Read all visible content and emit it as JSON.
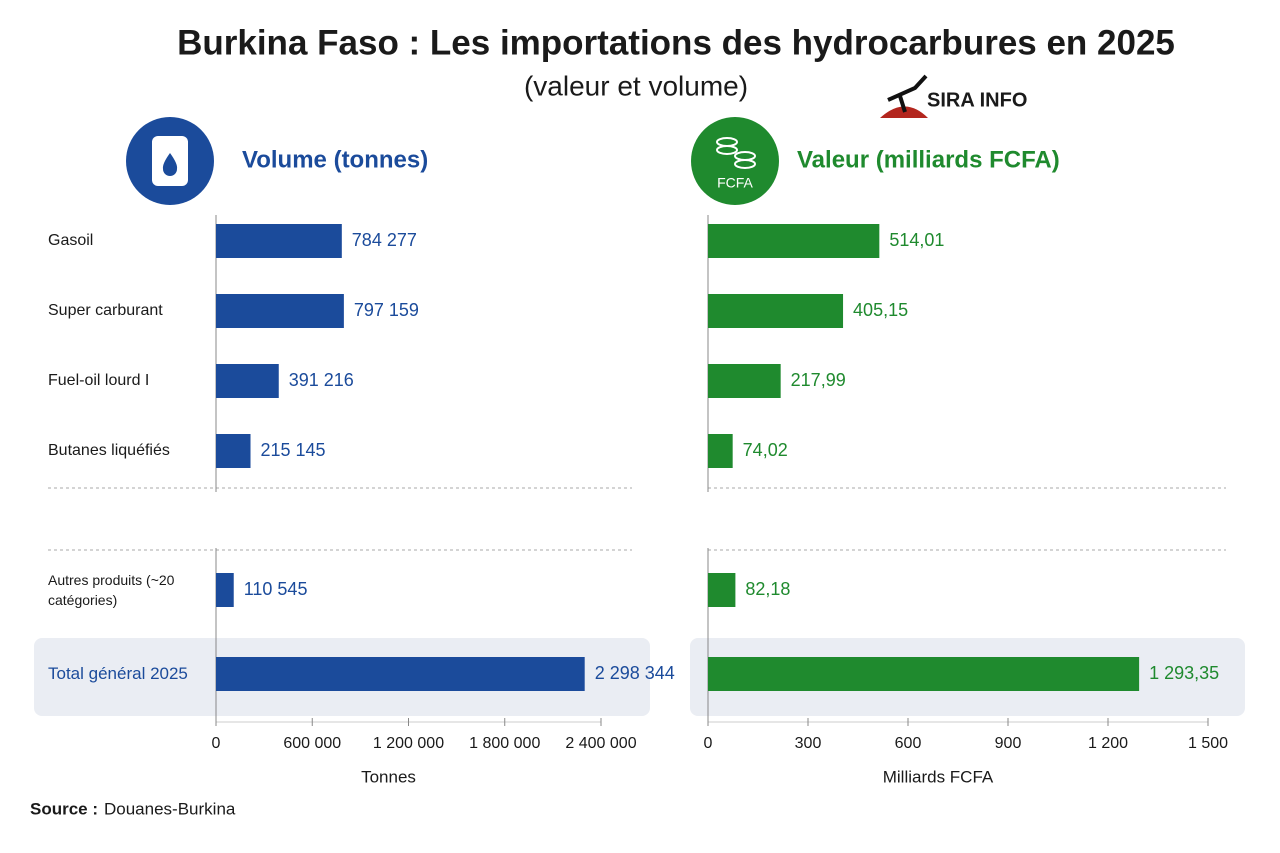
{
  "title": "Burkina Faso : Les importations des hydrocarbures en 2025",
  "subtitle": "(valeur et volume)",
  "logo": "SIRA INFO",
  "source": {
    "label": "Source :",
    "text": "Douanes-Burkina"
  },
  "chart_data": [
    {
      "type": "bar",
      "orientation": "horizontal",
      "header": "Volume (tonnes)",
      "categories": [
        "Gasoil",
        "Super carburant",
        "Fuel-oil lourd I",
        "Butanes liquéfiés",
        "Autres produits (~20 catégories)",
        "Total général 2025"
      ],
      "values": [
        784277,
        797159,
        391216,
        215145,
        110545,
        2298344
      ],
      "value_labels": [
        "784 277",
        "797 159",
        "391 216",
        "215 145",
        "110 545",
        "2 298 344"
      ],
      "color": "#1b4b9b",
      "xlim": [
        0,
        2400000
      ],
      "xticks": [
        0,
        {
          "value": 600000,
          "label": "600 000"
        },
        {
          "value": 1200000,
          "label": "1 200 000"
        },
        {
          "value": 1800000,
          "label": "1 800 000"
        },
        {
          "value": 2400000,
          "label": "2 400 000"
        }
      ],
      "xlabel": "Tonnes"
    },
    {
      "type": "bar",
      "orientation": "horizontal",
      "header": "Valeur (milliards FCFA)",
      "icon_label": "FCFA",
      "values": [
        514.01,
        405.15,
        217.99,
        74.02,
        82.18,
        1293.35
      ],
      "value_labels": [
        "514,01",
        "405,15",
        "217,99",
        "74,02",
        "82,18",
        "1 293,35"
      ],
      "color": "#1f8a2e",
      "xlim": [
        0,
        1500
      ],
      "xticks": [
        0,
        300,
        600,
        900,
        {
          "value": 1200,
          "label": "1 200"
        },
        {
          "value": 1500,
          "label": "1 500"
        }
      ],
      "xlabel": "Milliards FCFA"
    }
  ]
}
